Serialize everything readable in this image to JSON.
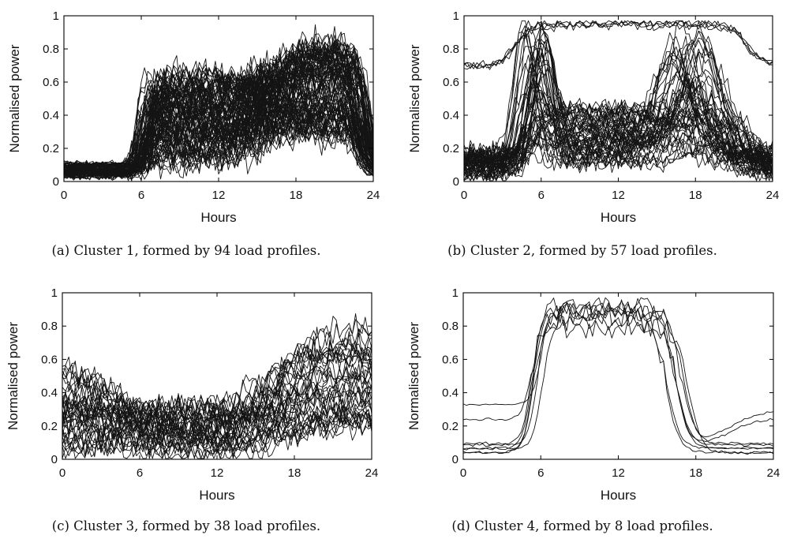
{
  "chart_data": [
    {
      "type": "line",
      "xlabel": "Hours",
      "ylabel": "Normalised power",
      "xlim": [
        0,
        24
      ],
      "ylim": [
        0,
        1
      ],
      "xticks": [
        0,
        6,
        12,
        18,
        24
      ],
      "yticks": [
        0,
        0.2,
        0.4,
        0.6,
        0.8,
        1
      ],
      "xtick_labels": [
        "0",
        "6",
        "12",
        "18",
        "24"
      ],
      "ytick_labels": [
        "0",
        "0.2",
        "0.4",
        "0.6",
        "0.8",
        "1"
      ],
      "caption": "(a) Cluster 1, formed by 94 load profiles.",
      "profile_count": 94,
      "series_shape": {
        "night_level": 0.06,
        "morning_rise_hour": 6,
        "day_level": 0.4,
        "evening_peak_hour": 20,
        "evening_level": 0.65,
        "drop_hour": 24
      }
    },
    {
      "type": "line",
      "xlabel": "Hours",
      "ylabel": "Normalised power",
      "xlim": [
        0,
        24
      ],
      "ylim": [
        0,
        1
      ],
      "xticks": [
        0,
        6,
        12,
        18,
        24
      ],
      "yticks": [
        0,
        0.2,
        0.4,
        0.6,
        0.8,
        1
      ],
      "xtick_labels": [
        "0",
        "6",
        "12",
        "18",
        "24"
      ],
      "ytick_labels": [
        "0",
        "0.2",
        "0.4",
        "0.6",
        "0.8",
        "1"
      ],
      "caption": "(b) Cluster 2, formed by 57 load profiles.",
      "profile_count": 57,
      "series_shape": {
        "night_level": 0.08,
        "morning_peak_hour": 5.5,
        "morning_level": 0.55,
        "day_level": 0.3,
        "evening_peak_hour": 18,
        "evening_level": 0.6,
        "drop_hour": 21.5
      }
    },
    {
      "type": "line",
      "xlabel": "Hours",
      "ylabel": "Normalised power",
      "xlim": [
        0,
        24
      ],
      "ylim": [
        0,
        1
      ],
      "xticks": [
        0,
        6,
        12,
        18,
        24
      ],
      "yticks": [
        0,
        0.2,
        0.4,
        0.6,
        0.8,
        1
      ],
      "xtick_labels": [
        "0",
        "6",
        "12",
        "18",
        "24"
      ],
      "ytick_labels": [
        "0",
        "0.2",
        "0.4",
        "0.6",
        "0.8",
        "1"
      ],
      "caption": "(c) Cluster 3, formed by 38 load profiles.",
      "profile_count": 38,
      "series_shape": {
        "night_level": 0.2,
        "day_level": 0.18,
        "evening_peak_hour": 21,
        "evening_level": 0.5
      }
    },
    {
      "type": "line",
      "xlabel": "Hours",
      "ylabel": "Normalised power",
      "xlim": [
        0,
        24
      ],
      "ylim": [
        0,
        1
      ],
      "xticks": [
        0,
        6,
        12,
        18,
        24
      ],
      "yticks": [
        0,
        0.2,
        0.4,
        0.6,
        0.8,
        1
      ],
      "xtick_labels": [
        "0",
        "6",
        "12",
        "18",
        "24"
      ],
      "ytick_labels": [
        "0",
        "0.2",
        "0.4",
        "0.6",
        "0.8",
        "1"
      ],
      "caption": "(d) Cluster 4, formed by 8 load profiles.",
      "profile_count": 8,
      "series_shape": {
        "night_level": 0.05,
        "rise_hour": 5.5,
        "peak_level": 0.85,
        "peak_hours": [
          9,
          14
        ],
        "drop_hour": 17.5
      }
    }
  ]
}
